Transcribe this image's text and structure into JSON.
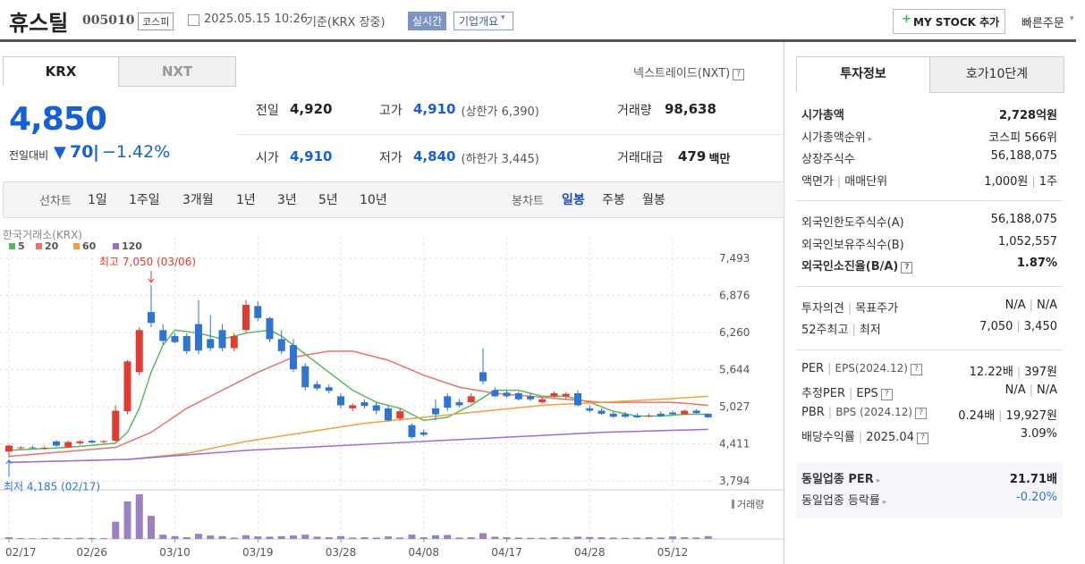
{
  "header": {
    "name": "휴스틸",
    "code": "005010",
    "market": "코스피",
    "datetime": "2025.05.15 10:26",
    "basis": "기준(KRX 장중)",
    "realtime": "실시간",
    "company": "기업개요",
    "mystock": "MY STOCK 추가",
    "quick_order": "빠른주문"
  },
  "quote": {
    "tabs": [
      "KRX",
      "NXT"
    ],
    "nxt_link": "넥스트레이드(NXT)",
    "price": "4,850",
    "change_label": "전일대비",
    "change": "70",
    "change_rate": "−1.42%",
    "items": [
      {
        "label": "전일",
        "value": "4,920"
      },
      {
        "label": "고가",
        "value": "4,910",
        "note": "(상한가 6,390)"
      },
      {
        "label": "거래량",
        "value": "98,638"
      },
      {
        "label": "시가",
        "value": "4,910"
      },
      {
        "label": "저가",
        "value": "4,840",
        "note": "(하한가 3,445)"
      },
      {
        "label": "거래대금",
        "value": "479",
        "note": "백만"
      }
    ]
  },
  "periods": {
    "line_label": "선차트",
    "line": [
      "1일",
      "1주일",
      "3개월",
      "1년",
      "3년",
      "5년",
      "10년"
    ],
    "candle_label": "봉차트",
    "candle": [
      "일봉",
      "주봉",
      "월봉"
    ]
  },
  "chart_data": {
    "type": "candlestick",
    "source": "한국거래소(KRX)",
    "categories": [
      "02/17",
      null,
      null,
      null,
      null,
      null,
      null,
      "02/26",
      null,
      null,
      null,
      null,
      null,
      null,
      "03/10",
      null,
      null,
      null,
      null,
      null,
      null,
      "03/19",
      null,
      null,
      null,
      null,
      null,
      null,
      "03/28",
      null,
      null,
      null,
      null,
      null,
      null,
      "04/08",
      null,
      null,
      null,
      null,
      null,
      null,
      "04/17",
      null,
      null,
      null,
      null,
      null,
      null,
      "04/28",
      null,
      null,
      null,
      null,
      null,
      null,
      "05/12",
      null,
      null,
      null
    ],
    "open": [
      4280,
      4340,
      4350,
      4340,
      4450,
      4350,
      4420,
      4460,
      4440,
      4460,
      4950,
      5600,
      6600,
      6300,
      6200,
      6200,
      6400,
      6150,
      6300,
      6000,
      6300,
      6700,
      6500,
      6150,
      6050,
      5700,
      5400,
      5350,
      5200,
      5000,
      5100,
      5050,
      5000,
      4830,
      4720,
      4600,
      5000,
      5200,
      5100,
      5100,
      5600,
      5300,
      5260,
      5250,
      5200,
      5100,
      5200,
      5200,
      5250,
      5000,
      4960,
      4910,
      4900,
      4880,
      4870,
      4910,
      4930,
      4900,
      4960,
      4910
    ],
    "high": [
      4400,
      4370,
      4380,
      4370,
      4470,
      4460,
      4470,
      4480,
      4470,
      5050,
      5800,
      6350,
      7050,
      6400,
      6250,
      6250,
      6800,
      6550,
      6400,
      6250,
      6800,
      6780,
      6520,
      6300,
      6150,
      5750,
      5450,
      5400,
      5250,
      5080,
      5150,
      5100,
      5050,
      5000,
      4750,
      4650,
      5150,
      5250,
      5150,
      5250,
      6000,
      5350,
      5300,
      5280,
      5250,
      5180,
      5280,
      5270,
      5300,
      5050,
      5000,
      4950,
      4940,
      4920,
      4910,
      4950,
      4960,
      4980,
      4990,
      4910
    ],
    "low": [
      4185,
      4320,
      4330,
      4310,
      4360,
      4340,
      4400,
      4420,
      4420,
      4440,
      4900,
      5550,
      6350,
      6050,
      6080,
      5900,
      5900,
      5950,
      5950,
      5950,
      6250,
      6450,
      6100,
      5900,
      5600,
      5300,
      5300,
      5250,
      5000,
      4950,
      5000,
      4900,
      4780,
      4800,
      4500,
      4530,
      4800,
      4950,
      5020,
      5080,
      5400,
      5180,
      5180,
      5130,
      5120,
      5080,
      5180,
      5150,
      5030,
      4930,
      4890,
      4840,
      4840,
      4840,
      4850,
      4860,
      4890,
      4890,
      4910,
      4840
    ],
    "close": [
      4380,
      4350,
      4340,
      4345,
      4380,
      4440,
      4450,
      4430,
      4455,
      4960,
      5780,
      6300,
      6420,
      6120,
      6100,
      5950,
      5960,
      6000,
      6000,
      6200,
      6720,
      6500,
      6150,
      5950,
      5650,
      5350,
      5330,
      5290,
      5050,
      5050,
      5040,
      4960,
      4800,
      4950,
      4520,
      4560,
      4900,
      5010,
      5050,
      5200,
      5450,
      5200,
      5200,
      5150,
      5150,
      5150,
      5250,
      5240,
      5050,
      4960,
      4910,
      4860,
      4860,
      4850,
      4880,
      4870,
      4900,
      4960,
      4920,
      4850
    ],
    "volume": [
      60000,
      30000,
      25000,
      30000,
      40000,
      35000,
      40000,
      35000,
      30000,
      600000,
      1300000,
      1550000,
      800000,
      150000,
      100000,
      60000,
      180000,
      120000,
      100000,
      50000,
      130000,
      90000,
      80000,
      100000,
      120000,
      150000,
      80000,
      60000,
      100000,
      50000,
      60000,
      50000,
      90000,
      50000,
      150000,
      60000,
      130000,
      140000,
      50000,
      60000,
      200000,
      80000,
      60000,
      50000,
      40000,
      40000,
      60000,
      50000,
      80000,
      70000,
      60000,
      50000,
      40000,
      50000,
      60000,
      50000,
      90000,
      60000,
      50000,
      98638
    ],
    "up_color": "#e03c31",
    "down_color": "#2f74d0",
    "volume_color": "#9b80c4",
    "volume_label": "거래량",
    "ma": [
      {
        "name": "5",
        "color": "#5cb85c",
        "x": [
          0,
          5,
          9,
          10,
          11,
          12,
          13,
          14,
          16,
          18,
          20,
          22,
          23,
          25,
          27,
          29,
          31,
          33,
          35,
          37,
          39,
          41,
          43,
          45,
          47,
          49,
          51,
          53,
          55,
          57,
          59
        ],
        "values": [
          4300,
          4350,
          4420,
          4600,
          5000,
          5600,
          6050,
          6300,
          6250,
          6150,
          6250,
          6300,
          6200,
          5900,
          5600,
          5300,
          5100,
          5000,
          4800,
          4850,
          5050,
          5300,
          5300,
          5200,
          5200,
          5100,
          4950,
          4870,
          4870,
          4900,
          4900
        ]
      },
      {
        "name": "20",
        "color": "#e8736b",
        "x": [
          0,
          9,
          12,
          15,
          18,
          21,
          24,
          27,
          29,
          32,
          35,
          38,
          41,
          44,
          47,
          50,
          53,
          56,
          59
        ],
        "values": [
          4200,
          4350,
          4600,
          5000,
          5300,
          5600,
          5850,
          5950,
          5950,
          5800,
          5550,
          5350,
          5250,
          5200,
          5150,
          5100,
          5100,
          5100,
          5050
        ]
      },
      {
        "name": "60",
        "color": "#f0a040",
        "x": [
          0,
          10,
          15,
          20,
          25,
          30,
          35,
          40,
          45,
          50,
          55,
          59
        ],
        "values": [
          4100,
          4150,
          4250,
          4450,
          4600,
          4750,
          4850,
          4950,
          5050,
          5100,
          5150,
          5200
        ]
      },
      {
        "name": "120",
        "color": "#9b6fd0",
        "x": [
          0,
          10,
          20,
          30,
          40,
          50,
          59
        ],
        "values": [
          4100,
          4150,
          4300,
          4400,
          4500,
          4600,
          4650
        ]
      }
    ],
    "annotations": [
      {
        "text": "최고 7,050 (03/06)",
        "index": 12,
        "price": 7050
      },
      {
        "text": "최저 4,185 (02/17)",
        "index": 0,
        "price": 4185
      }
    ],
    "ylim": [
      3645,
      7850
    ],
    "yticks": [
      {
        "value": 7493,
        "label": "7,493"
      },
      {
        "value": 6876,
        "label": "6,876"
      },
      {
        "value": 6260,
        "label": "6,260"
      },
      {
        "value": 5644,
        "label": "5,644"
      },
      {
        "value": 5027,
        "label": "5,027"
      },
      {
        "value": 4411,
        "label": "4,411"
      },
      {
        "value": 3794,
        "label": "3,794"
      }
    ],
    "grid": true
  },
  "invest": {
    "tabs": [
      "투자정보",
      "호가10단계"
    ],
    "groups": [
      [
        {
          "label": [
            "시가총액"
          ],
          "value": [
            "2,728억원"
          ],
          "bold": true
        },
        {
          "label": [
            "시가총액순위"
          ],
          "arrow": true,
          "value": [
            "코스피 566위"
          ]
        },
        {
          "label": [
            "상장주식수"
          ],
          "value": [
            "56,188,075"
          ]
        },
        {
          "label": [
            "액면가",
            "매매단위"
          ],
          "value": [
            "1,000원",
            "1주"
          ]
        }
      ],
      [
        {
          "label": [
            "외국인한도주식수(A)"
          ],
          "value": [
            "56,188,075"
          ]
        },
        {
          "label": [
            "외국인보유주식수(B)"
          ],
          "value": [
            "1,052,557"
          ]
        },
        {
          "label": [
            "외국인소진율(B/A)"
          ],
          "help": true,
          "value": [
            "1.87%"
          ],
          "bold": true
        }
      ],
      [
        {
          "label": [
            "투자의견",
            "목표주가"
          ],
          "value": [
            "N/A",
            "N/A"
          ]
        },
        {
          "label": [
            "52주최고",
            "최저"
          ],
          "value": [
            "7,050",
            "3,450"
          ]
        }
      ],
      [
        {
          "label": [
            "PER",
            "EPS(2024.12)"
          ],
          "help": true,
          "value": [
            "12.22배",
            "397원"
          ]
        },
        {
          "label": [
            "추정PER",
            "EPS"
          ],
          "help": true,
          "value": [
            "N/A",
            "N/A"
          ]
        },
        {
          "label": [
            "PBR",
            "BPS (2024.12)"
          ],
          "help": true,
          "value": [
            "0.24배",
            "19,927원"
          ]
        },
        {
          "label": [
            "배당수익률",
            "2025.04"
          ],
          "help": true,
          "value": [
            "3.09%"
          ]
        }
      ],
      [
        {
          "label": [
            "동일업종 PER"
          ],
          "arrow": true,
          "value": [
            "21.71배"
          ],
          "bold": true
        },
        {
          "label": [
            "동일업종 등락률"
          ],
          "arrow": true,
          "value": [
            "-0.20%"
          ],
          "color": "#2f74d0"
        }
      ]
    ]
  }
}
